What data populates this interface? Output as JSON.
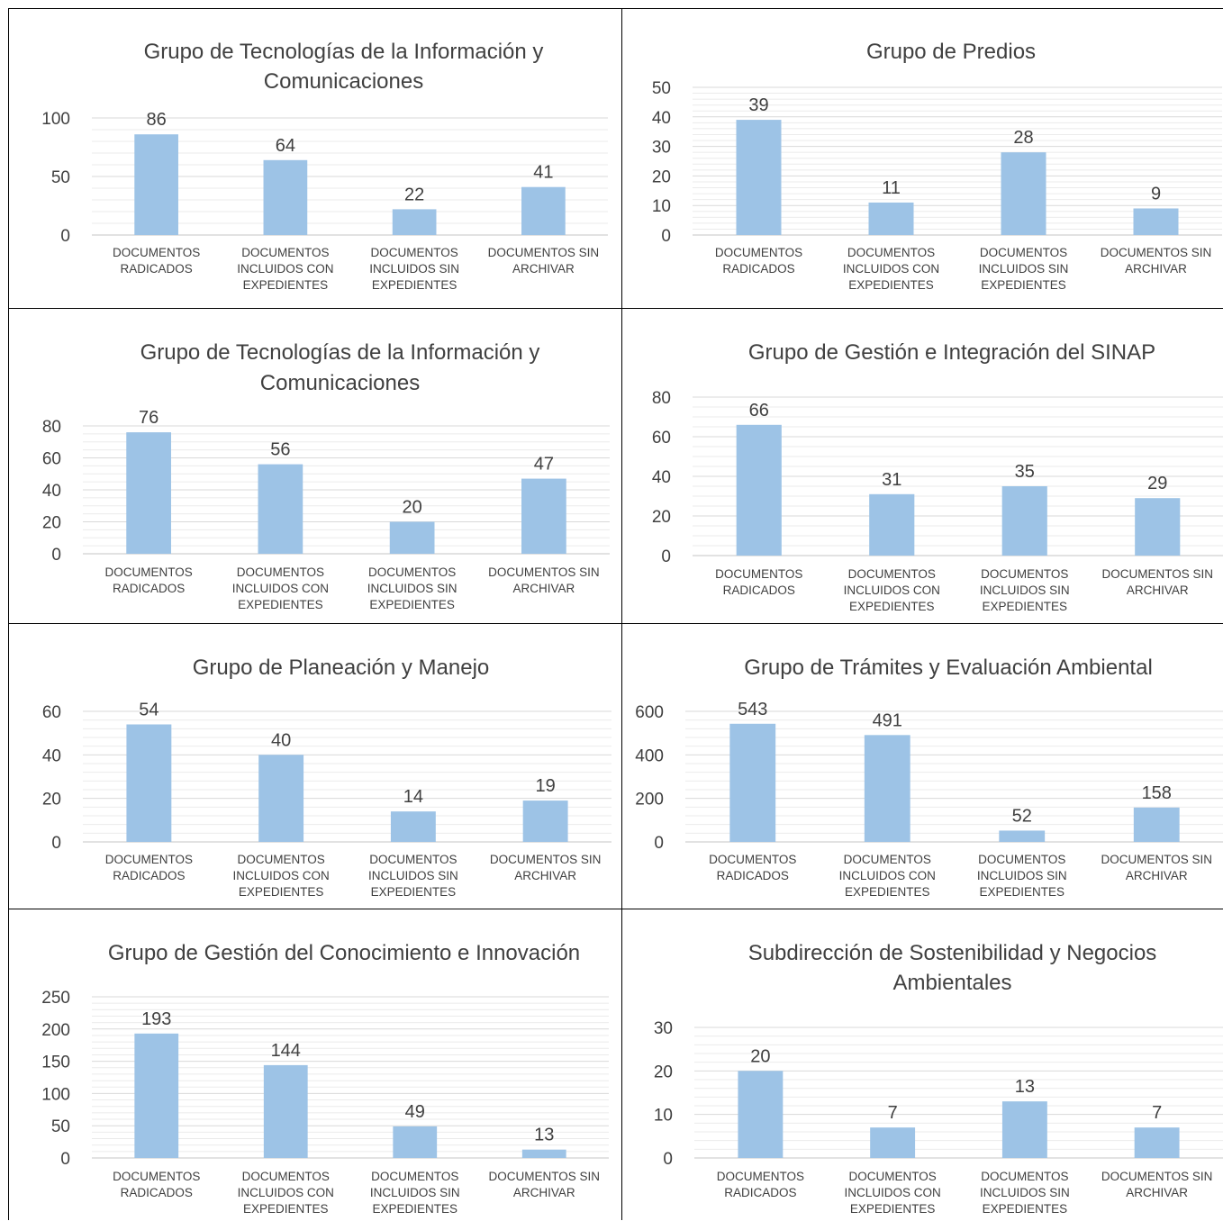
{
  "chart_data": [
    {
      "type": "bar",
      "title_lines": [
        "Grupo de Tecnologías de la Información y",
        "Comunicaciones"
      ],
      "categories": [
        [
          "DOCUMENTOS",
          "RADICADOS"
        ],
        [
          "DOCUMENTOS",
          "INCLUIDOS CON",
          "EXPEDIENTES"
        ],
        [
          "DOCUMENTOS",
          "INCLUIDOS SIN",
          "EXPEDIENTES"
        ],
        [
          "DOCUMENTOS SIN",
          "ARCHIVAR"
        ]
      ],
      "values": [
        86,
        64,
        22,
        41
      ],
      "yticks": [
        0,
        50,
        100
      ],
      "ylim": [
        0,
        100
      ],
      "minor_step": 10,
      "bar_color": "#9dc3e6",
      "grid": true,
      "legend": "none"
    },
    {
      "type": "bar",
      "title_lines": [
        "Grupo de Predios"
      ],
      "categories": [
        [
          "DOCUMENTOS",
          "RADICADOS"
        ],
        [
          "DOCUMENTOS",
          "INCLUIDOS CON",
          "EXPEDIENTES"
        ],
        [
          "DOCUMENTOS",
          "INCLUIDOS SIN",
          "EXPEDIENTES"
        ],
        [
          "DOCUMENTOS SIN",
          "ARCHIVAR"
        ]
      ],
      "values": [
        39,
        11,
        28,
        9
      ],
      "yticks": [
        0,
        10,
        20,
        30,
        40,
        50
      ],
      "ylim": [
        0,
        50
      ],
      "minor_step": 2,
      "bar_color": "#9dc3e6",
      "grid": true,
      "legend": "none"
    },
    {
      "type": "bar",
      "title_lines": [
        "Grupo de Tecnologías de la Información y",
        "Comunicaciones"
      ],
      "categories": [
        [
          "DOCUMENTOS",
          "RADICADOS"
        ],
        [
          "DOCUMENTOS",
          "INCLUIDOS CON",
          "EXPEDIENTES"
        ],
        [
          "DOCUMENTOS",
          "INCLUIDOS SIN",
          "EXPEDIENTES"
        ],
        [
          "DOCUMENTOS SIN",
          "ARCHIVAR"
        ]
      ],
      "values": [
        76,
        56,
        20,
        47
      ],
      "yticks": [
        0,
        20,
        40,
        60,
        80
      ],
      "ylim": [
        0,
        80
      ],
      "minor_step": 5,
      "bar_color": "#9dc3e6",
      "grid": true,
      "legend": "none"
    },
    {
      "type": "bar",
      "title_lines": [
        "Grupo de Gestión e Integración del SINAP"
      ],
      "categories": [
        [
          "DOCUMENTOS",
          "RADICADOS"
        ],
        [
          "DOCUMENTOS",
          "INCLUIDOS CON",
          "EXPEDIENTES"
        ],
        [
          "DOCUMENTOS",
          "INCLUIDOS SIN",
          "EXPEDIENTES"
        ],
        [
          "DOCUMENTOS SIN",
          "ARCHIVAR"
        ]
      ],
      "values": [
        66,
        31,
        35,
        29
      ],
      "yticks": [
        0,
        20,
        40,
        60,
        80
      ],
      "ylim": [
        0,
        80
      ],
      "minor_step": 5,
      "bar_color": "#9dc3e6",
      "grid": true,
      "legend": "none"
    },
    {
      "type": "bar",
      "title_lines": [
        "Grupo de Planeación y Manejo"
      ],
      "categories": [
        [
          "DOCUMENTOS",
          "RADICADOS"
        ],
        [
          "DOCUMENTOS",
          "INCLUIDOS CON",
          "EXPEDIENTES"
        ],
        [
          "DOCUMENTOS",
          "INCLUIDOS SIN",
          "EXPEDIENTES"
        ],
        [
          "DOCUMENTOS SIN",
          "ARCHIVAR"
        ]
      ],
      "values": [
        54,
        40,
        14,
        19
      ],
      "yticks": [
        0,
        20,
        40,
        60
      ],
      "ylim": [
        0,
        60
      ],
      "minor_step": 4,
      "bar_color": "#9dc3e6",
      "grid": true,
      "legend": "none"
    },
    {
      "type": "bar",
      "title_lines": [
        "Grupo de Trámites y Evaluación Ambiental"
      ],
      "categories": [
        [
          "DOCUMENTOS",
          "RADICADOS"
        ],
        [
          "DOCUMENTOS",
          "INCLUIDOS CON",
          "EXPEDIENTES"
        ],
        [
          "DOCUMENTOS",
          "INCLUIDOS SIN",
          "EXPEDIENTES"
        ],
        [
          "DOCUMENTOS SIN",
          "ARCHIVAR"
        ]
      ],
      "values": [
        543,
        491,
        52,
        158
      ],
      "yticks": [
        0,
        200,
        400,
        600
      ],
      "ylim": [
        0,
        600
      ],
      "minor_step": 40,
      "bar_color": "#9dc3e6",
      "grid": true,
      "legend": "none"
    },
    {
      "type": "bar",
      "title_lines": [
        "Grupo de Gestión del Conocimiento e Innovación"
      ],
      "categories": [
        [
          "DOCUMENTOS",
          "RADICADOS"
        ],
        [
          "DOCUMENTOS",
          "INCLUIDOS CON",
          "EXPEDIENTES"
        ],
        [
          "DOCUMENTOS",
          "INCLUIDOS SIN",
          "EXPEDIENTES"
        ],
        [
          "DOCUMENTOS SIN",
          "ARCHIVAR"
        ]
      ],
      "values": [
        193,
        144,
        49,
        13
      ],
      "yticks": [
        0,
        50,
        100,
        150,
        200,
        250
      ],
      "ylim": [
        0,
        250
      ],
      "minor_step": 10,
      "bar_color": "#9dc3e6",
      "grid": true,
      "legend": "none"
    },
    {
      "type": "bar",
      "title_lines": [
        "Subdirección de Sostenibilidad y Negocios",
        "Ambientales"
      ],
      "categories": [
        [
          "DOCUMENTOS",
          "RADICADOS"
        ],
        [
          "DOCUMENTOS",
          "INCLUIDOS CON",
          "EXPEDIENTES"
        ],
        [
          "DOCUMENTOS",
          "INCLUIDOS SIN",
          "EXPEDIENTES"
        ],
        [
          "DOCUMENTOS SIN",
          "ARCHIVAR"
        ]
      ],
      "values": [
        20,
        7,
        13,
        7
      ],
      "yticks": [
        0,
        10,
        20,
        30
      ],
      "ylim": [
        0,
        30
      ],
      "minor_step": 2,
      "bar_color": "#9dc3e6",
      "grid": true,
      "legend": "none"
    }
  ]
}
